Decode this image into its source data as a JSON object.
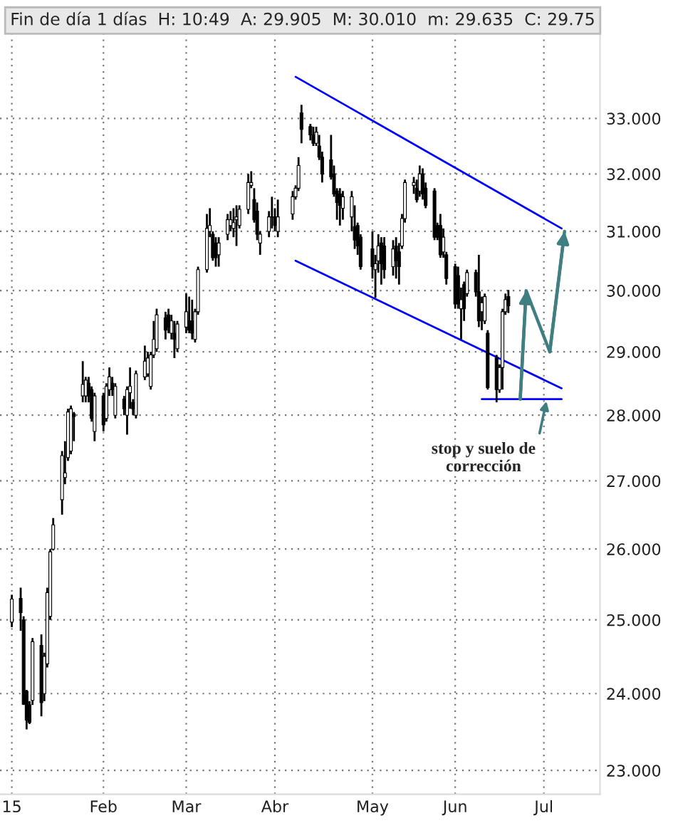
{
  "chart_data": {
    "type": "candlestick",
    "title": "Fin de día 1 días  H: 10:49  A: 29.905  M: 30.010  m: 29.635  C: 29.75",
    "x": [
      "2015-01-02",
      "2015-01-05",
      "2015-01-06",
      "2015-01-07",
      "2015-01-08",
      "2015-01-09",
      "2015-01-12",
      "2015-01-13",
      "2015-01-14",
      "2015-01-15",
      "2015-01-16",
      "2015-01-19",
      "2015-01-20",
      "2015-01-21",
      "2015-01-22",
      "2015-01-23",
      "2015-01-26",
      "2015-01-27",
      "2015-01-28",
      "2015-01-29",
      "2015-01-30",
      "2015-02-02",
      "2015-02-03",
      "2015-02-04",
      "2015-02-05",
      "2015-02-06",
      "2015-02-09",
      "2015-02-10",
      "2015-02-11",
      "2015-02-12",
      "2015-02-13",
      "2015-02-16",
      "2015-02-17",
      "2015-02-18",
      "2015-02-19",
      "2015-02-20",
      "2015-02-23",
      "2015-02-24",
      "2015-02-25",
      "2015-02-26",
      "2015-02-27",
      "2015-03-02",
      "2015-03-03",
      "2015-03-04",
      "2015-03-05",
      "2015-03-06",
      "2015-03-09",
      "2015-03-10",
      "2015-03-11",
      "2015-03-12",
      "2015-03-13",
      "2015-03-16",
      "2015-03-17",
      "2015-03-18",
      "2015-03-19",
      "2015-03-20",
      "2015-03-23",
      "2015-03-24",
      "2015-03-25",
      "2015-03-26",
      "2015-03-27",
      "2015-03-30",
      "2015-03-31",
      "2015-04-01",
      "2015-04-02",
      "2015-04-07",
      "2015-04-08",
      "2015-04-09",
      "2015-04-10",
      "2015-04-13",
      "2015-04-14",
      "2015-04-15",
      "2015-04-16",
      "2015-04-17",
      "2015-04-20",
      "2015-04-21",
      "2015-04-22",
      "2015-04-23",
      "2015-04-24",
      "2015-04-27",
      "2015-04-28",
      "2015-04-29",
      "2015-04-30",
      "2015-05-04",
      "2015-05-05",
      "2015-05-06",
      "2015-05-07",
      "2015-05-08",
      "2015-05-11",
      "2015-05-12",
      "2015-05-13",
      "2015-05-14",
      "2015-05-15",
      "2015-05-18",
      "2015-05-19",
      "2015-05-20",
      "2015-05-21",
      "2015-05-22",
      "2015-05-25",
      "2015-05-26",
      "2015-05-27",
      "2015-05-28",
      "2015-05-29",
      "2015-06-01",
      "2015-06-02",
      "2015-06-03",
      "2015-06-04",
      "2015-06-05",
      "2015-06-08",
      "2015-06-09",
      "2015-06-10",
      "2015-06-11",
      "2015-06-12",
      "2015-06-15",
      "2015-06-16",
      "2015-06-17",
      "2015-06-18",
      "2015-06-19"
    ],
    "ohlc": [
      [
        24.97,
        25.35,
        24.9,
        25.29
      ],
      [
        25.3,
        25.45,
        24.85,
        25.1
      ],
      [
        25.0,
        25.05,
        23.85,
        23.86
      ],
      [
        24.03,
        24.05,
        23.53,
        23.65
      ],
      [
        23.85,
        23.9,
        23.6,
        23.62
      ],
      [
        23.91,
        24.75,
        23.85,
        24.7
      ],
      [
        24.65,
        24.8,
        23.7,
        23.88
      ],
      [
        24.0,
        24.55,
        23.9,
        24.5
      ],
      [
        24.4,
        25.45,
        24.35,
        25.38
      ],
      [
        25.05,
        26.0,
        25.0,
        25.96
      ],
      [
        26.0,
        26.45,
        25.98,
        26.35
      ],
      [
        26.72,
        27.45,
        26.5,
        27.38
      ],
      [
        27.05,
        27.6,
        26.95,
        27.12
      ],
      [
        27.35,
        28.1,
        27.3,
        28.05
      ],
      [
        27.45,
        28.15,
        27.4,
        28.1
      ],
      [
        28.02,
        28.05,
        27.6,
        27.98
      ],
      [
        28.3,
        28.85,
        28.2,
        28.48
      ],
      [
        28.3,
        28.6,
        28.2,
        28.55
      ],
      [
        28.5,
        28.6,
        28.2,
        28.3
      ],
      [
        28.4,
        28.45,
        27.9,
        27.95
      ],
      [
        27.75,
        28.35,
        27.6,
        28.3
      ],
      [
        28.3,
        28.35,
        27.75,
        27.85
      ],
      [
        27.95,
        28.5,
        27.9,
        28.45
      ],
      [
        28.4,
        28.75,
        28.3,
        28.6
      ],
      [
        28.5,
        28.6,
        28.3,
        28.4
      ],
      [
        28.0,
        28.5,
        27.95,
        28.45
      ],
      [
        28.25,
        28.3,
        28.0,
        28.1
      ],
      [
        28.0,
        28.45,
        27.7,
        28.4
      ],
      [
        28.35,
        28.75,
        28.1,
        28.45
      ],
      [
        28.2,
        28.25,
        28.0,
        28.1
      ],
      [
        28.0,
        28.7,
        27.95,
        28.65
      ],
      [
        28.6,
        29.1,
        28.55,
        28.85
      ],
      [
        28.65,
        29.0,
        28.6,
        28.9
      ],
      [
        28.45,
        29.0,
        28.4,
        28.95
      ],
      [
        28.95,
        29.5,
        28.9,
        29.2
      ],
      [
        29.05,
        29.7,
        29.0,
        29.6
      ],
      [
        29.55,
        29.65,
        29.2,
        29.35
      ],
      [
        29.6,
        29.7,
        29.3,
        29.4
      ],
      [
        29.3,
        29.6,
        29.2,
        29.5
      ],
      [
        29.3,
        29.5,
        28.9,
        29.2
      ],
      [
        29.05,
        29.5,
        29.0,
        29.45
      ],
      [
        29.4,
        29.95,
        29.3,
        29.65
      ],
      [
        29.5,
        29.9,
        29.3,
        29.35
      ],
      [
        29.5,
        29.85,
        29.2,
        29.3
      ],
      [
        29.2,
        29.7,
        29.15,
        29.65
      ],
      [
        29.65,
        30.4,
        29.6,
        30.35
      ],
      [
        30.35,
        31.3,
        30.3,
        31.05
      ],
      [
        31.0,
        31.4,
        30.9,
        31.1
      ],
      [
        30.95,
        31.0,
        30.5,
        30.55
      ],
      [
        30.8,
        30.9,
        30.4,
        30.55
      ],
      [
        30.6,
        30.9,
        30.4,
        30.8
      ],
      [
        30.95,
        31.3,
        30.85,
        31.2
      ],
      [
        31.1,
        31.35,
        31.0,
        31.2
      ],
      [
        31.05,
        31.4,
        30.9,
        31.15
      ],
      [
        31.2,
        31.45,
        30.75,
        31.25
      ],
      [
        31.1,
        31.45,
        31.05,
        31.38
      ],
      [
        31.38,
        32.0,
        31.3,
        31.85
      ],
      [
        31.8,
        32.05,
        31.75,
        31.85
      ],
      [
        31.55,
        31.75,
        31.15,
        31.2
      ],
      [
        31.35,
        31.5,
        30.85,
        30.95
      ],
      [
        30.8,
        31.0,
        30.6,
        30.95
      ],
      [
        31.0,
        31.35,
        30.9,
        31.25
      ],
      [
        31.25,
        31.6,
        31.05,
        31.25
      ],
      [
        31.25,
        31.4,
        31.0,
        31.1
      ],
      [
        31.0,
        31.55,
        30.9,
        31.25
      ],
      [
        31.3,
        31.7,
        31.2,
        31.6
      ],
      [
        31.6,
        31.8,
        31.55,
        31.75
      ],
      [
        31.75,
        32.3,
        31.7,
        32.15
      ],
      [
        33.1,
        33.25,
        32.55,
        32.8
      ],
      [
        32.85,
        32.9,
        32.6,
        32.7
      ],
      [
        32.7,
        32.85,
        32.5,
        32.55
      ],
      [
        32.55,
        32.85,
        32.5,
        32.75
      ],
      [
        32.5,
        32.7,
        32.25,
        32.3
      ],
      [
        32.3,
        32.4,
        31.85,
        32.0
      ],
      [
        32.25,
        32.7,
        31.9,
        31.95
      ],
      [
        32.0,
        32.15,
        31.6,
        31.65
      ],
      [
        31.7,
        31.75,
        31.2,
        31.5
      ],
      [
        31.65,
        31.75,
        31.1,
        31.45
      ],
      [
        31.4,
        31.7,
        31.2,
        31.6
      ],
      [
        31.25,
        31.7,
        31.0,
        31.6
      ],
      [
        31.08,
        31.45,
        30.7,
        30.85
      ],
      [
        31.1,
        31.15,
        30.6,
        30.75
      ],
      [
        30.9,
        30.95,
        30.35,
        30.4
      ],
      [
        30.7,
        31.0,
        30.2,
        30.4
      ],
      [
        30.35,
        30.6,
        29.88,
        30.45
      ],
      [
        30.5,
        30.95,
        30.3,
        30.75
      ],
      [
        30.8,
        30.9,
        30.1,
        30.45
      ],
      [
        30.75,
        30.9,
        30.2,
        30.35
      ],
      [
        30.4,
        30.85,
        30.25,
        30.7
      ],
      [
        30.75,
        30.9,
        30.2,
        30.5
      ],
      [
        30.65,
        30.8,
        30.1,
        30.4
      ],
      [
        30.75,
        31.3,
        30.7,
        31.22
      ],
      [
        31.22,
        31.9,
        31.15,
        31.85
      ],
      [
        31.8,
        31.95,
        31.65,
        31.85
      ],
      [
        31.75,
        31.9,
        31.5,
        31.55
      ],
      [
        31.7,
        32.15,
        31.6,
        32.0
      ],
      [
        32.0,
        32.1,
        31.55,
        31.65
      ],
      [
        31.75,
        31.85,
        31.4,
        31.45
      ],
      [
        31.7,
        31.75,
        30.85,
        30.9
      ],
      [
        31.1,
        31.15,
        30.85,
        30.9
      ],
      [
        31.1,
        31.3,
        30.55,
        30.6
      ],
      [
        30.65,
        31.05,
        30.55,
        30.9
      ],
      [
        30.6,
        30.65,
        30.1,
        30.2
      ],
      [
        30.4,
        30.45,
        29.7,
        29.78
      ],
      [
        30.25,
        30.4,
        29.7,
        29.78
      ],
      [
        29.7,
        30.05,
        29.2,
        29.85
      ],
      [
        30.1,
        30.15,
        29.5,
        29.7
      ],
      [
        29.95,
        30.35,
        29.9,
        30.3
      ],
      [
        30.3,
        30.35,
        29.9,
        29.98
      ],
      [
        29.98,
        30.6,
        29.4,
        29.5
      ],
      [
        29.65,
        29.9,
        29.35,
        29.8
      ],
      [
        29.5,
        29.95,
        29.45,
        29.9
      ],
      [
        29.3,
        29.35,
        28.4,
        28.43
      ],
      [
        28.9,
        28.95,
        28.2,
        28.4
      ],
      [
        28.4,
        28.8,
        28.35,
        28.75
      ],
      [
        28.75,
        29.7,
        28.4,
        29.65
      ],
      [
        29.65,
        29.95,
        29.6,
        29.85
      ],
      [
        29.9,
        30.01,
        29.63,
        29.75
      ]
    ],
    "series": [
      {
        "type": "line",
        "color": "#0000ff",
        "x": [
          "2015-04-08",
          "2015-07-07"
        ],
        "values": [
          33.77,
          31.05
        ]
      },
      {
        "type": "line",
        "color": "#0000ff",
        "x": [
          "2015-04-08",
          "2015-07-07"
        ],
        "values": [
          30.5,
          28.42
        ]
      },
      {
        "type": "line",
        "color": "#0000ff",
        "x": [
          "2015-06-10",
          "2015-07-07"
        ],
        "values": [
          28.25,
          28.25
        ]
      },
      {
        "type": "line",
        "color": "#3f7f82",
        "x": [
          "2015-06-23",
          "2015-06-25",
          "2015-07-03",
          "2015-07-08"
        ],
        "values": [
          28.25,
          30.0,
          29.0,
          31.0
        ]
      }
    ],
    "annotations": [
      {
        "text": "stop y suelo de\ncorrección",
        "x": "2015-07-02",
        "y": 28.25
      }
    ],
    "log": "y",
    "xlim": [
      "2014-12-29",
      "2015-07-20"
    ],
    "ylim": [
      22.7,
      34.6
    ],
    "xticks": [
      {
        "value": "2015-01-02",
        "label": "15"
      },
      {
        "value": "2015-02-02",
        "label": "Feb"
      },
      {
        "value": "2015-03-02",
        "label": "Mar"
      },
      {
        "value": "2015-04-01",
        "label": "Abr"
      },
      {
        "value": "2015-05-04",
        "label": "May"
      },
      {
        "value": "2015-06-01",
        "label": "Jun"
      },
      {
        "value": "2015-07-01",
        "label": "Jul"
      }
    ],
    "yticks": [
      {
        "value": 23,
        "label": "23.000"
      },
      {
        "value": 24,
        "label": "24.000"
      },
      {
        "value": 25,
        "label": "25.000"
      },
      {
        "value": 26,
        "label": "26.000"
      },
      {
        "value": 27,
        "label": "27.000"
      },
      {
        "value": 28,
        "label": "28.000"
      },
      {
        "value": 29,
        "label": "29.000"
      },
      {
        "value": 30,
        "label": "30.000"
      },
      {
        "value": 31,
        "label": "31.000"
      },
      {
        "value": 32,
        "label": "32.000"
      },
      {
        "value": 33,
        "label": "33.000"
      }
    ],
    "grid": true,
    "legend": false,
    "marker": "none",
    "line_style": "solid"
  }
}
